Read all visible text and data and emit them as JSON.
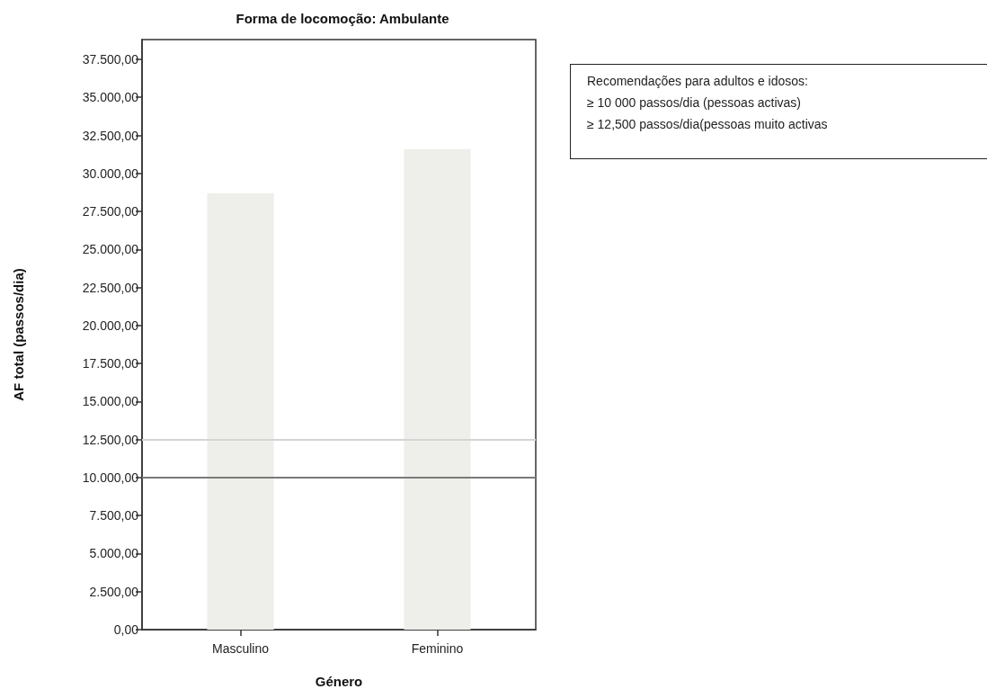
{
  "chart_data": {
    "type": "bar",
    "title": "Forma de locomoção: Ambulante",
    "xlabel": "Género",
    "ylabel": "AF total (passos/dia)",
    "categories": [
      "Masculino",
      "Feminino"
    ],
    "values": [
      28700,
      31600
    ],
    "color": "#eeeeea",
    "ylim": [
      0,
      38800
    ],
    "yticks": [
      {
        "value": 0,
        "label": "0,00"
      },
      {
        "value": 2500,
        "label": "2.500,00"
      },
      {
        "value": 5000,
        "label": "5.000,00"
      },
      {
        "value": 7500,
        "label": "7.500,00"
      },
      {
        "value": 10000,
        "label": "10.000,00"
      },
      {
        "value": 12500,
        "label": "12.500,00"
      },
      {
        "value": 15000,
        "label": "15.000,00"
      },
      {
        "value": 17500,
        "label": "17.500,00"
      },
      {
        "value": 20000,
        "label": "20.000,00"
      },
      {
        "value": 22500,
        "label": "22.500,00"
      },
      {
        "value": 25000,
        "label": "25.000,00"
      },
      {
        "value": 27500,
        "label": "27.500,00"
      },
      {
        "value": 30000,
        "label": "30.000,00"
      },
      {
        "value": 32500,
        "label": "32.500,00"
      },
      {
        "value": 35000,
        "label": "35.000,00"
      },
      {
        "value": 37500,
        "label": "37.500,00"
      }
    ],
    "ref_lines": [
      {
        "axis": "y",
        "value": 12500,
        "color": "#d4d4d4"
      },
      {
        "axis": "y",
        "value": 10000,
        "color": "#7a7a7a"
      }
    ],
    "annotations": [
      "Recomendações para adultos e idosos:",
      "≥ 10 000 passos/dia (pessoas activas)",
      "≥ 12,500 passos/dia(pessoas muito activas"
    ],
    "data_labels": false
  }
}
